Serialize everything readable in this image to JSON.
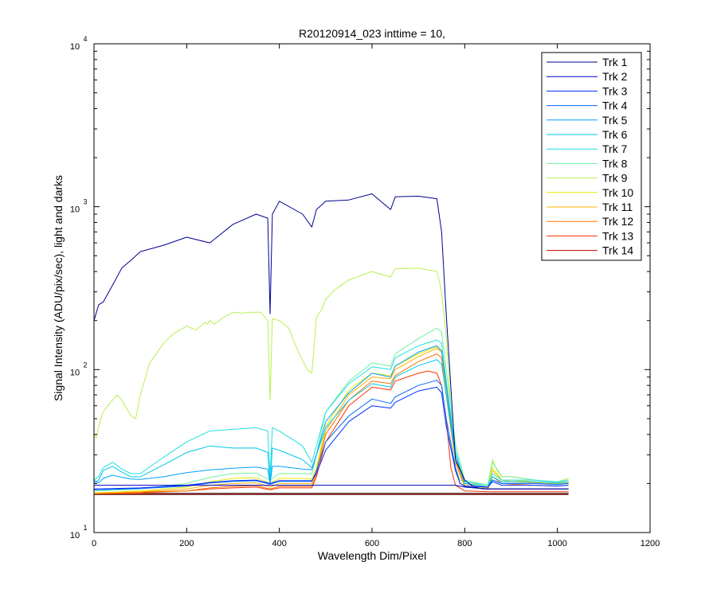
{
  "chart_data": {
    "type": "line",
    "title": "R20120914_023 inttime = 10,",
    "xlabel": "Wavelength Dim/Pixel",
    "ylabel": "Signal Intensity (ADU/pix/sec), light and darks",
    "xlim": [
      0,
      1200
    ],
    "ylim": [
      10,
      10000
    ],
    "yscale": "log",
    "xticks": [
      0,
      200,
      400,
      600,
      800,
      1000,
      1200
    ],
    "xtick_labels": [
      "0",
      "200",
      "400",
      "600",
      "800",
      "1000",
      "1200"
    ],
    "yticks": [
      10,
      100,
      1000,
      10000
    ],
    "ytick_labels": [
      {
        "base": "10",
        "exp": "1"
      },
      {
        "base": "10",
        "exp": "2"
      },
      {
        "base": "10",
        "exp": "3"
      },
      {
        "base": "10",
        "exp": "4"
      }
    ],
    "grid": false,
    "legend_position": "top-right",
    "series": [
      {
        "name": "Trk 1",
        "color": "#00008f",
        "x": [
          0,
          10,
          20,
          40,
          60,
          80,
          100,
          150,
          200,
          250,
          300,
          350,
          375,
          380,
          385,
          400,
          450,
          470,
          480,
          500,
          550,
          600,
          640,
          650,
          700,
          740,
          750,
          760,
          780,
          800,
          820,
          840,
          860,
          880,
          900,
          950,
          1000,
          1024
        ],
        "y": [
          200,
          250,
          260,
          330,
          420,
          470,
          530,
          580,
          650,
          600,
          780,
          900,
          850,
          220,
          900,
          1080,
          900,
          750,
          960,
          1080,
          1100,
          1200,
          960,
          1150,
          1160,
          1120,
          700,
          220,
          28,
          21,
          19,
          18.5,
          18.5,
          18.5,
          18.5,
          18.5,
          18.5,
          18.5
        ]
      },
      {
        "name": "Trk 2",
        "color": "#0000c8",
        "x": [
          0,
          100,
          200,
          300,
          400,
          500,
          600,
          700,
          740,
          760,
          780,
          800,
          850,
          900,
          950,
          1000,
          1024
        ],
        "y": [
          19.5,
          19.5,
          19.5,
          19.5,
          19.5,
          19.5,
          19.5,
          19.5,
          19.5,
          19.5,
          19.5,
          19,
          18.5,
          18.5,
          18.5,
          18.5,
          18.5
        ]
      },
      {
        "name": "Trk 3",
        "color": "#0030ff",
        "x": [
          0,
          100,
          200,
          250,
          300,
          350,
          380,
          400,
          450,
          470,
          480,
          500,
          550,
          600,
          640,
          650,
          700,
          740,
          750,
          760,
          780,
          790,
          800,
          850,
          860,
          880,
          900,
          950,
          1000,
          1024
        ],
        "y": [
          18.5,
          18.8,
          19.5,
          20.3,
          20.8,
          21,
          20,
          20.8,
          20.8,
          20.8,
          23,
          32,
          48,
          60,
          58,
          63,
          74,
          78,
          72,
          45,
          24,
          20,
          19.3,
          19,
          20.5,
          19.5,
          19.5,
          19.5,
          19.3,
          19.5
        ]
      },
      {
        "name": "Trk 4",
        "color": "#0066ff",
        "x": [
          0,
          100,
          200,
          250,
          300,
          350,
          380,
          400,
          450,
          470,
          480,
          500,
          550,
          600,
          640,
          650,
          700,
          740,
          750,
          760,
          780,
          790,
          800,
          850,
          860,
          880,
          900,
          950,
          1000,
          1024
        ],
        "y": [
          18.3,
          18.6,
          19.3,
          20.1,
          20.6,
          20.8,
          19.8,
          20.6,
          20.6,
          20.6,
          24,
          36,
          52,
          66,
          62,
          68,
          80,
          86,
          80,
          50,
          25,
          20,
          19.2,
          19,
          21,
          20,
          20,
          20,
          19.7,
          20
        ]
      },
      {
        "name": "Trk 5",
        "color": "#00a0ff",
        "x": [
          0,
          5,
          10,
          20,
          40,
          60,
          80,
          100,
          150,
          200,
          250,
          300,
          350,
          375,
          380,
          385,
          400,
          450,
          470,
          480,
          500,
          550,
          600,
          640,
          650,
          700,
          740,
          750,
          760,
          780,
          800,
          850,
          860,
          880,
          900,
          950,
          1000,
          1024
        ],
        "y": [
          21,
          20.5,
          20.2,
          21.5,
          22.5,
          21.8,
          21.3,
          21.2,
          22,
          23.3,
          24.2,
          24.8,
          25.2,
          24.5,
          20,
          25.5,
          25.5,
          24.5,
          24.3,
          30,
          48,
          72,
          95,
          90,
          105,
          128,
          140,
          130,
          80,
          30,
          20,
          19,
          21,
          20,
          20,
          20,
          19.8,
          20
        ]
      },
      {
        "name": "Trk 6",
        "color": "#00c8e8",
        "x": [
          0,
          5,
          10,
          20,
          40,
          60,
          80,
          100,
          150,
          200,
          250,
          300,
          350,
          375,
          380,
          385,
          400,
          450,
          470,
          480,
          500,
          550,
          600,
          640,
          650,
          700,
          740,
          750,
          760,
          780,
          800,
          850,
          860,
          880,
          900,
          950,
          1000,
          1024
        ],
        "y": [
          20,
          20.5,
          21,
          24,
          25.5,
          23.5,
          22,
          22,
          26,
          31,
          34,
          33,
          33,
          31,
          20,
          33,
          32,
          28,
          25,
          30,
          44,
          65,
          82,
          78,
          90,
          106,
          115,
          108,
          70,
          30,
          20,
          19,
          22,
          20.5,
          20.5,
          20.5,
          20.2,
          20.5
        ]
      },
      {
        "name": "Trk 7",
        "color": "#20e0e0",
        "x": [
          0,
          5,
          10,
          20,
          40,
          60,
          80,
          100,
          150,
          200,
          250,
          300,
          350,
          375,
          380,
          385,
          400,
          450,
          470,
          480,
          500,
          550,
          600,
          640,
          650,
          700,
          740,
          750,
          760,
          780,
          800,
          850,
          860,
          880,
          900,
          950,
          1000,
          1024
        ],
        "y": [
          21,
          21.5,
          22,
          25,
          27,
          24.5,
          23,
          23,
          29,
          36,
          42,
          43,
          44,
          42,
          22,
          44,
          42,
          34,
          27,
          34,
          55,
          82,
          104,
          100,
          118,
          140,
          152,
          145,
          85,
          32,
          20.5,
          19.5,
          23,
          21,
          21,
          21,
          20.5,
          21
        ]
      },
      {
        "name": "Trk 8",
        "color": "#70f0a0",
        "x": [
          0,
          100,
          200,
          250,
          300,
          350,
          380,
          400,
          450,
          470,
          480,
          500,
          550,
          600,
          640,
          650,
          700,
          740,
          750,
          760,
          780,
          800,
          850,
          860,
          880,
          900,
          950,
          1000,
          1024
        ],
        "y": [
          18,
          18.5,
          20,
          21.8,
          23,
          23.2,
          21,
          23,
          23,
          22.8,
          30,
          55,
          85,
          110,
          105,
          125,
          155,
          180,
          170,
          100,
          35,
          21,
          19.5,
          27,
          22,
          22,
          21,
          20.5,
          21
        ]
      },
      {
        "name": "Trk 9",
        "color": "#b8f050",
        "x": [
          0,
          5,
          10,
          20,
          30,
          40,
          50,
          60,
          70,
          80,
          90,
          100,
          120,
          150,
          170,
          200,
          220,
          240,
          245,
          250,
          260,
          280,
          300,
          320,
          340,
          360,
          375,
          378,
          380,
          385,
          400,
          420,
          440,
          460,
          470,
          480,
          490,
          500,
          520,
          550,
          600,
          640,
          650,
          700,
          740,
          745,
          750,
          760,
          770,
          780,
          790,
          800,
          850,
          860,
          870,
          880,
          900,
          950,
          1000,
          1024
        ],
        "y": [
          40,
          38,
          45,
          55,
          60,
          65,
          70,
          65,
          58,
          52,
          50,
          70,
          110,
          145,
          165,
          185,
          175,
          195,
          190,
          200,
          190,
          210,
          225,
          222,
          225,
          225,
          200,
          100,
          65,
          205,
          200,
          180,
          130,
          100,
          95,
          210,
          230,
          270,
          310,
          355,
          400,
          370,
          415,
          420,
          400,
          350,
          300,
          160,
          60,
          25,
          21,
          20,
          19.5,
          28,
          24,
          22,
          22,
          21,
          20.5,
          21.5
        ]
      },
      {
        "name": "Trk 10",
        "color": "#e8e800",
        "x": [
          0,
          100,
          200,
          250,
          300,
          350,
          380,
          400,
          450,
          470,
          480,
          500,
          550,
          600,
          640,
          650,
          700,
          740,
          750,
          760,
          780,
          800,
          850,
          860,
          880,
          900,
          950,
          1000,
          1024
        ],
        "y": [
          17.5,
          18,
          19,
          20.5,
          21.5,
          21.7,
          20,
          21.5,
          21.5,
          21.3,
          25,
          45,
          75,
          95,
          92,
          105,
          125,
          138,
          130,
          80,
          30,
          20,
          19,
          25,
          21,
          21,
          20.5,
          20,
          20.5
        ]
      },
      {
        "name": "Trk 11",
        "color": "#ffb000",
        "x": [
          0,
          100,
          200,
          250,
          300,
          350,
          380,
          400,
          450,
          470,
          480,
          500,
          550,
          600,
          640,
          650,
          700,
          740,
          750,
          760,
          780,
          800,
          850,
          860,
          880,
          900,
          950,
          1000,
          1024
        ],
        "y": [
          17.5,
          17.8,
          18.5,
          19.5,
          20,
          20.2,
          19,
          20,
          20,
          20,
          24,
          42,
          70,
          90,
          88,
          100,
          120,
          135,
          128,
          75,
          28,
          19.5,
          18.8,
          24,
          21,
          20.5,
          20.3,
          20,
          20.3
        ]
      },
      {
        "name": "Trk 12",
        "color": "#ff7000",
        "x": [
          0,
          100,
          200,
          250,
          300,
          350,
          380,
          400,
          450,
          470,
          480,
          500,
          550,
          600,
          640,
          650,
          700,
          740,
          750,
          760,
          780,
          800,
          850,
          860,
          880,
          900,
          950,
          1000,
          1024
        ],
        "y": [
          17.3,
          17.5,
          18,
          18.8,
          19.2,
          19.4,
          18.5,
          19.2,
          19.2,
          19.2,
          23,
          40,
          65,
          85,
          82,
          92,
          112,
          125,
          118,
          70,
          27,
          19,
          18.5,
          22,
          20,
          19.8,
          19.5,
          19.3,
          19.5
        ]
      },
      {
        "name": "Trk 13",
        "color": "#ff3000",
        "x": [
          0,
          100,
          200,
          250,
          300,
          350,
          380,
          400,
          450,
          470,
          480,
          500,
          550,
          600,
          640,
          650,
          700,
          720,
          740,
          750,
          760,
          770,
          780,
          800,
          850,
          900,
          950,
          1000,
          1024
        ],
        "y": [
          17.5,
          17.7,
          18,
          18.5,
          18.8,
          19,
          18.3,
          18.8,
          18.8,
          18.8,
          22,
          36,
          60,
          78,
          75,
          85,
          95,
          98,
          95,
          80,
          50,
          25,
          19.5,
          18,
          17.8,
          17.8,
          17.8,
          17.8,
          17.8
        ]
      },
      {
        "name": "Trk 14",
        "color": "#c80000",
        "x": [
          0,
          200,
          400,
          600,
          800,
          1000,
          1024
        ],
        "y": [
          17.2,
          17.2,
          17.2,
          17.2,
          17.2,
          17.2,
          17.2
        ]
      }
    ],
    "unlabeled_series": [
      {
        "color": "#000000",
        "x": [
          0,
          200,
          400,
          600,
          800,
          1000,
          1024
        ],
        "y": [
          17.1,
          17.1,
          17.1,
          17.1,
          17.1,
          17.1,
          17.1
        ]
      },
      {
        "color": "#202020",
        "x": [
          0,
          200,
          400,
          600,
          800,
          1000,
          1024
        ],
        "y": [
          17.4,
          17.4,
          17.4,
          17.4,
          17.4,
          17.4,
          17.4
        ]
      }
    ]
  }
}
